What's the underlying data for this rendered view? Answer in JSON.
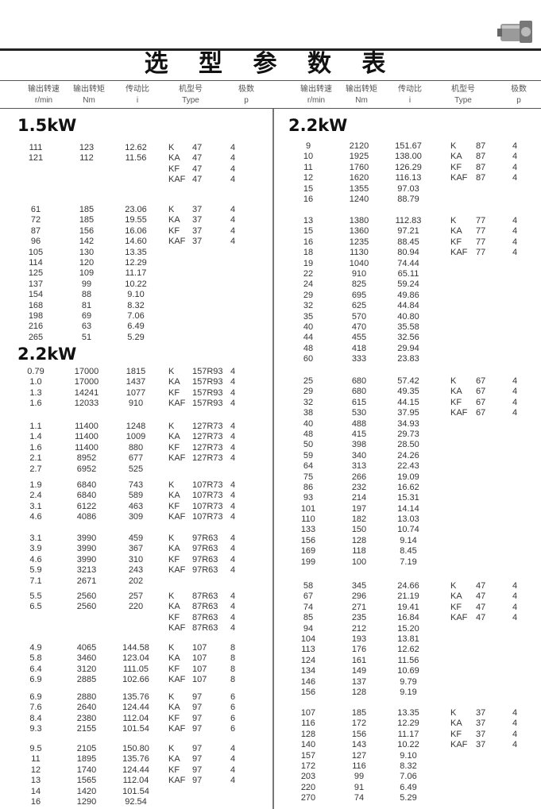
{
  "title": "选 型 参 数 表",
  "headers": [
    {
      "cn": "输出转速",
      "en": "r/min"
    },
    {
      "cn": "输出转矩",
      "en": "Nm"
    },
    {
      "cn": "传动比",
      "en": "i"
    },
    {
      "cn": "机型号",
      "en": "Type"
    },
    {
      "cn": "极数",
      "en": "p"
    }
  ],
  "sections": [
    {
      "label": "1.5kW",
      "groups": [
        {
          "rows": [
            [
              "111",
              "123",
              "12.62"
            ],
            [
              "121",
              "112",
              "11.56"
            ]
          ],
          "types": [
            [
              "K",
              "47",
              "4"
            ],
            [
              "KA",
              "47",
              "4"
            ],
            [
              "KF",
              "47",
              "4"
            ],
            [
              "KAF",
              "47",
              "4"
            ]
          ]
        },
        {
          "rows": [
            [
              "61",
              "185",
              "23.06"
            ],
            [
              "72",
              "185",
              "19.55"
            ],
            [
              "87",
              "156",
              "16.06"
            ],
            [
              "96",
              "142",
              "14.60"
            ],
            [
              "105",
              "130",
              "13.35"
            ],
            [
              "114",
              "120",
              "12.29"
            ],
            [
              "125",
              "109",
              "11.17"
            ],
            [
              "137",
              "99",
              "10.22"
            ],
            [
              "154",
              "88",
              "9.10"
            ],
            [
              "168",
              "81",
              "8.32"
            ],
            [
              "198",
              "69",
              "7.06"
            ],
            [
              "216",
              "63",
              "6.49"
            ],
            [
              "265",
              "51",
              "5.29"
            ]
          ],
          "types": [
            [
              "K",
              "37",
              "4"
            ],
            [
              "KA",
              "37",
              "4"
            ],
            [
              "KF",
              "37",
              "4"
            ],
            [
              "KAF",
              "37",
              "4"
            ]
          ]
        }
      ]
    },
    {
      "label": "2.2kW",
      "groups": [
        {
          "rows": [
            [
              "0.79",
              "17000",
              "1815"
            ],
            [
              "1.0",
              "17000",
              "1437"
            ],
            [
              "1.3",
              "14241",
              "1077"
            ],
            [
              "1.6",
              "12033",
              "910"
            ]
          ],
          "types": [
            [
              "K",
              "157R93",
              "4"
            ],
            [
              "KA",
              "157R93",
              "4"
            ],
            [
              "KF",
              "157R93",
              "4"
            ],
            [
              "KAF",
              "157R93",
              "4"
            ]
          ]
        },
        {
          "rows": [
            [
              "1.1",
              "11400",
              "1248"
            ],
            [
              "1.4",
              "11400",
              "1009"
            ],
            [
              "1.6",
              "11400",
              "880"
            ],
            [
              "2.1",
              "8952",
              "677"
            ],
            [
              "2.7",
              "6952",
              "525"
            ]
          ],
          "types": [
            [
              "K",
              "127R73",
              "4"
            ],
            [
              "KA",
              "127R73",
              "4"
            ],
            [
              "KF",
              "127R73",
              "4"
            ],
            [
              "KAF",
              "127R73",
              "4"
            ]
          ]
        },
        {
          "rows": [
            [
              "1.9",
              "6840",
              "743"
            ],
            [
              "2.4",
              "6840",
              "589"
            ],
            [
              "3.1",
              "6122",
              "463"
            ],
            [
              "4.6",
              "4086",
              "309"
            ]
          ],
          "types": [
            [
              "K",
              "107R73",
              "4"
            ],
            [
              "KA",
              "107R73",
              "4"
            ],
            [
              "KF",
              "107R73",
              "4"
            ],
            [
              "KAF",
              "107R73",
              "4"
            ]
          ]
        },
        {
          "rows": [
            [
              "3.1",
              "3990",
              "459"
            ],
            [
              "3.9",
              "3990",
              "367"
            ],
            [
              "4.6",
              "3990",
              "310"
            ],
            [
              "5.9",
              "3213",
              "243"
            ],
            [
              "7.1",
              "2671",
              "202"
            ]
          ],
          "types": [
            [
              "K",
              "97R63",
              "4"
            ],
            [
              "KA",
              "97R63",
              "4"
            ],
            [
              "KF",
              "97R63",
              "4"
            ],
            [
              "KAF",
              "97R63",
              "4"
            ]
          ]
        },
        {
          "rows": [
            [
              "5.5",
              "2560",
              "257"
            ],
            [
              "6.5",
              "2560",
              "220"
            ]
          ],
          "types": [
            [
              "K",
              "87R63",
              "4"
            ],
            [
              "KA",
              "87R63",
              "4"
            ],
            [
              "KF",
              "87R63",
              "4"
            ],
            [
              "KAF",
              "87R63",
              "4"
            ]
          ]
        },
        {
          "rows": [
            [
              "4.9",
              "4065",
              "144.58"
            ],
            [
              "5.8",
              "3460",
              "123.04"
            ],
            [
              "6.4",
              "3120",
              "111.05"
            ],
            [
              "6.9",
              "2885",
              "102.66"
            ]
          ],
          "types": [
            [
              "K",
              "107",
              "8"
            ],
            [
              "KA",
              "107",
              "8"
            ],
            [
              "KF",
              "107",
              "8"
            ],
            [
              "KAF",
              "107",
              "8"
            ]
          ]
        },
        {
          "rows": [
            [
              "6.9",
              "2880",
              "135.76"
            ],
            [
              "7.6",
              "2640",
              "124.44"
            ],
            [
              "8.4",
              "2380",
              "112.04"
            ],
            [
              "9.3",
              "2155",
              "101.54"
            ]
          ],
          "types": [
            [
              "K",
              "97",
              "6"
            ],
            [
              "KA",
              "97",
              "6"
            ],
            [
              "KF",
              "97",
              "6"
            ],
            [
              "KAF",
              "97",
              "6"
            ]
          ]
        },
        {
          "rows": [
            [
              "9.5",
              "2105",
              "150.80"
            ],
            [
              "11",
              "1895",
              "135.76"
            ],
            [
              "12",
              "1740",
              "124.44"
            ],
            [
              "13",
              "1565",
              "112.04"
            ],
            [
              "14",
              "1420",
              "101.54"
            ],
            [
              "16",
              "1290",
              "92.54"
            ]
          ],
          "types": [
            [
              "K",
              "97",
              "4"
            ],
            [
              "KA",
              "97",
              "4"
            ],
            [
              "KF",
              "97",
              "4"
            ],
            [
              "KAF",
              "97",
              "4"
            ]
          ]
        }
      ]
    },
    {
      "label": "2.2kW",
      "groups": [
        {
          "rows": [
            [
              "9",
              "2120",
              "151.67"
            ],
            [
              "10",
              "1925",
              "138.00"
            ],
            [
              "11",
              "1760",
              "126.29"
            ],
            [
              "12",
              "1620",
              "116.13"
            ],
            [
              "15",
              "1355",
              "97.03"
            ],
            [
              "16",
              "1240",
              "88.79"
            ]
          ],
          "types": [
            [
              "K",
              "87",
              "4"
            ],
            [
              "KA",
              "87",
              "4"
            ],
            [
              "KF",
              "87",
              "4"
            ],
            [
              "KAF",
              "87",
              "4"
            ]
          ]
        },
        {
          "rows": [
            [
              "13",
              "1380",
              "112.83"
            ],
            [
              "15",
              "1360",
              "97.21"
            ],
            [
              "16",
              "1235",
              "88.45"
            ],
            [
              "18",
              "1130",
              "80.94"
            ],
            [
              "19",
              "1040",
              "74.44"
            ],
            [
              "22",
              "910",
              "65.11"
            ],
            [
              "24",
              "825",
              "59.24"
            ],
            [
              "29",
              "695",
              "49.86"
            ],
            [
              "32",
              "625",
              "44.84"
            ],
            [
              "35",
              "570",
              "40.80"
            ],
            [
              "40",
              "470",
              "35.58"
            ],
            [
              "44",
              "455",
              "32.56"
            ],
            [
              "48",
              "418",
              "29.94"
            ],
            [
              "60",
              "333",
              "23.83"
            ]
          ],
          "types": [
            [
              "K",
              "77",
              "4"
            ],
            [
              "KA",
              "77",
              "4"
            ],
            [
              "KF",
              "77",
              "4"
            ],
            [
              "KAF",
              "77",
              "4"
            ]
          ]
        },
        {
          "rows": [
            [
              "25",
              "680",
              "57.42"
            ],
            [
              "29",
              "680",
              "49.35"
            ],
            [
              "32",
              "615",
              "44.15"
            ],
            [
              "38",
              "530",
              "37.95"
            ],
            [
              "40",
              "488",
              "34.93"
            ],
            [
              "48",
              "415",
              "29.73"
            ],
            [
              "50",
              "398",
              "28.50"
            ],
            [
              "59",
              "340",
              "24.26"
            ],
            [
              "64",
              "313",
              "22.43"
            ],
            [
              "75",
              "266",
              "19.09"
            ],
            [
              "86",
              "232",
              "16.62"
            ],
            [
              "93",
              "214",
              "15.31"
            ],
            [
              "101",
              "197",
              "14.14"
            ],
            [
              "110",
              "182",
              "13.03"
            ],
            [
              "133",
              "150",
              "10.74"
            ],
            [
              "156",
              "128",
              "9.14"
            ],
            [
              "169",
              "118",
              "8.45"
            ],
            [
              "199",
              "100",
              "7.19"
            ]
          ],
          "types": [
            [
              "K",
              "67",
              "4"
            ],
            [
              "KA",
              "67",
              "4"
            ],
            [
              "KF",
              "67",
              "4"
            ],
            [
              "KAF",
              "67",
              "4"
            ]
          ]
        },
        {
          "rows": [
            [
              "58",
              "345",
              "24.66"
            ],
            [
              "67",
              "296",
              "21.19"
            ],
            [
              "74",
              "271",
              "19.41"
            ],
            [
              "85",
              "235",
              "16.84"
            ],
            [
              "94",
              "212",
              "15.20"
            ],
            [
              "104",
              "193",
              "13.81"
            ],
            [
              "113",
              "176",
              "12.62"
            ],
            [
              "124",
              "161",
              "11.56"
            ],
            [
              "134",
              "149",
              "10.69"
            ],
            [
              "146",
              "137",
              "9.79"
            ],
            [
              "156",
              "128",
              "9.19"
            ]
          ],
          "types": [
            [
              "K",
              "47",
              "4"
            ],
            [
              "KA",
              "47",
              "4"
            ],
            [
              "KF",
              "47",
              "4"
            ],
            [
              "KAF",
              "47",
              "4"
            ]
          ]
        },
        {
          "rows": [
            [
              "107",
              "185",
              "13.35"
            ],
            [
              "116",
              "172",
              "12.29"
            ],
            [
              "128",
              "156",
              "11.17"
            ],
            [
              "140",
              "143",
              "10.22"
            ],
            [
              "157",
              "127",
              "9.10"
            ],
            [
              "172",
              "116",
              "8.32"
            ],
            [
              "203",
              "99",
              "7.06"
            ],
            [
              "220",
              "91",
              "6.49"
            ],
            [
              "270",
              "74",
              "5.29"
            ]
          ],
          "types": [
            [
              "K",
              "37",
              "4"
            ],
            [
              "KA",
              "37",
              "4"
            ],
            [
              "KF",
              "37",
              "4"
            ],
            [
              "KAF",
              "37",
              "4"
            ]
          ]
        }
      ]
    }
  ]
}
